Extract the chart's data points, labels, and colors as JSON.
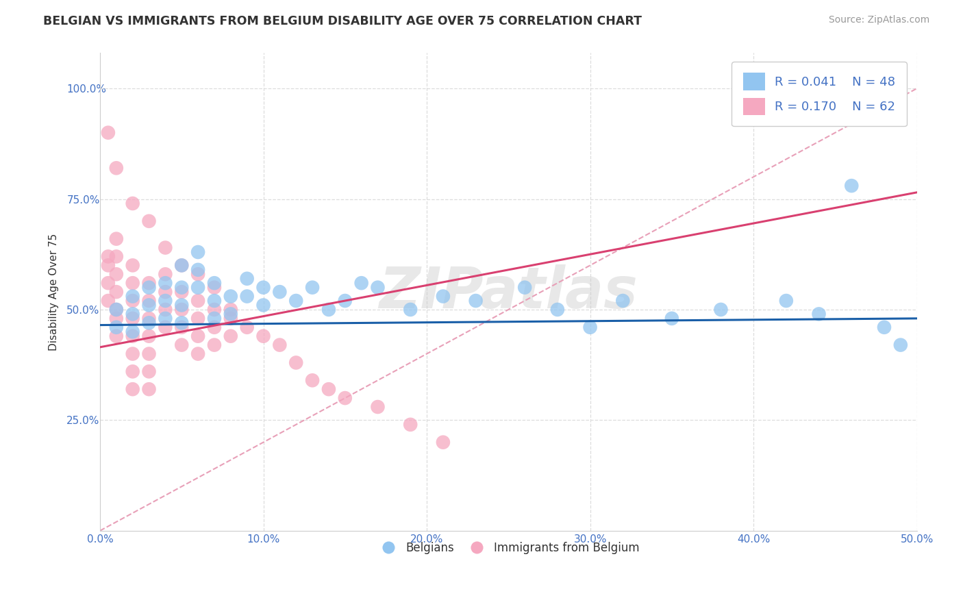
{
  "title": "BELGIAN VS IMMIGRANTS FROM BELGIUM DISABILITY AGE OVER 75 CORRELATION CHART",
  "source": "Source: ZipAtlas.com",
  "xlabel": "",
  "ylabel": "Disability Age Over 75",
  "xlim": [
    0.0,
    0.5
  ],
  "ylim": [
    0.0,
    1.08
  ],
  "xticks": [
    0.0,
    0.1,
    0.2,
    0.3,
    0.4,
    0.5
  ],
  "xticklabels": [
    "0.0%",
    "10.0%",
    "20.0%",
    "30.0%",
    "40.0%",
    "50.0%"
  ],
  "yticks": [
    0.25,
    0.5,
    0.75,
    1.0
  ],
  "yticklabels": [
    "25.0%",
    "50.0%",
    "75.0%",
    "100.0%"
  ],
  "legend_r1": "R = 0.041",
  "legend_n1": "N = 48",
  "legend_r2": "R = 0.170",
  "legend_n2": "N = 62",
  "blue_color": "#92C5F0",
  "pink_color": "#F5A8C0",
  "blue_line_color": "#1A5FA8",
  "pink_line_color": "#D94070",
  "diag_line_color": "#E8A0B8",
  "background_color": "#FFFFFF",
  "grid_color": "#DDDDDD",
  "title_color": "#333333",
  "axis_color": "#4472C4",
  "watermark": "ZIPatlas",
  "blue_scatter_x": [
    0.01,
    0.01,
    0.02,
    0.02,
    0.02,
    0.03,
    0.03,
    0.03,
    0.04,
    0.04,
    0.04,
    0.05,
    0.05,
    0.05,
    0.05,
    0.06,
    0.06,
    0.06,
    0.07,
    0.07,
    0.07,
    0.08,
    0.08,
    0.09,
    0.09,
    0.1,
    0.1,
    0.11,
    0.12,
    0.13,
    0.14,
    0.15,
    0.16,
    0.17,
    0.19,
    0.21,
    0.23,
    0.26,
    0.28,
    0.3,
    0.32,
    0.35,
    0.38,
    0.42,
    0.44,
    0.46,
    0.48,
    0.49
  ],
  "blue_scatter_y": [
    0.5,
    0.46,
    0.53,
    0.49,
    0.45,
    0.55,
    0.51,
    0.47,
    0.56,
    0.52,
    0.48,
    0.6,
    0.55,
    0.51,
    0.47,
    0.63,
    0.59,
    0.55,
    0.56,
    0.52,
    0.48,
    0.53,
    0.49,
    0.57,
    0.53,
    0.55,
    0.51,
    0.54,
    0.52,
    0.55,
    0.5,
    0.52,
    0.56,
    0.55,
    0.5,
    0.53,
    0.52,
    0.55,
    0.5,
    0.46,
    0.52,
    0.48,
    0.5,
    0.52,
    0.49,
    0.78,
    0.46,
    0.42
  ],
  "pink_scatter_x": [
    0.005,
    0.005,
    0.005,
    0.005,
    0.01,
    0.01,
    0.01,
    0.01,
    0.01,
    0.01,
    0.01,
    0.02,
    0.02,
    0.02,
    0.02,
    0.02,
    0.02,
    0.02,
    0.02,
    0.03,
    0.03,
    0.03,
    0.03,
    0.03,
    0.03,
    0.03,
    0.04,
    0.04,
    0.04,
    0.04,
    0.05,
    0.05,
    0.05,
    0.05,
    0.06,
    0.06,
    0.06,
    0.06,
    0.07,
    0.07,
    0.07,
    0.08,
    0.08,
    0.09,
    0.1,
    0.11,
    0.12,
    0.13,
    0.14,
    0.15,
    0.17,
    0.19,
    0.21,
    0.005,
    0.01,
    0.02,
    0.03,
    0.04,
    0.05,
    0.06,
    0.07,
    0.08
  ],
  "pink_scatter_y": [
    0.62,
    0.6,
    0.56,
    0.52,
    0.66,
    0.62,
    0.58,
    0.54,
    0.5,
    0.48,
    0.44,
    0.6,
    0.56,
    0.52,
    0.48,
    0.44,
    0.4,
    0.36,
    0.32,
    0.56,
    0.52,
    0.48,
    0.44,
    0.4,
    0.36,
    0.32,
    0.58,
    0.54,
    0.5,
    0.46,
    0.54,
    0.5,
    0.46,
    0.42,
    0.52,
    0.48,
    0.44,
    0.4,
    0.5,
    0.46,
    0.42,
    0.48,
    0.44,
    0.46,
    0.44,
    0.42,
    0.38,
    0.34,
    0.32,
    0.3,
    0.28,
    0.24,
    0.2,
    0.9,
    0.82,
    0.74,
    0.7,
    0.64,
    0.6,
    0.58,
    0.55,
    0.5
  ]
}
